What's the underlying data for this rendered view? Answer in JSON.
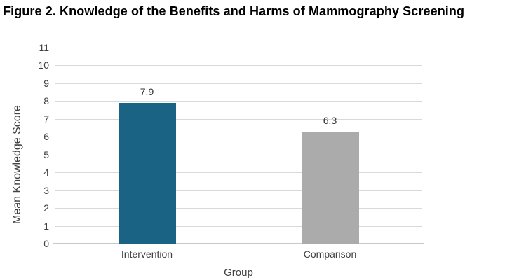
{
  "chart_data": {
    "type": "bar",
    "title": "Figure 2. Knowledge of the Benefits and Harms of Mammography Screening",
    "xlabel": "Group",
    "ylabel": "Mean Knowledge Score",
    "categories": [
      "Intervention",
      "Comparison"
    ],
    "values": [
      7.9,
      6.3
    ],
    "value_labels": [
      "7.9",
      "6.3"
    ],
    "bar_colors": [
      "#1B6384",
      "#ABABAB"
    ],
    "ylim": [
      0,
      11
    ],
    "yticks": [
      0,
      1,
      2,
      3,
      4,
      5,
      6,
      7,
      8,
      9,
      10,
      11
    ],
    "grid": "horizontal",
    "gridline_color": "#D9D9D9",
    "axis_line_color": "#C9C9C9",
    "text_color": "#404040",
    "title_color": "#000000",
    "legend_position": "none"
  }
}
